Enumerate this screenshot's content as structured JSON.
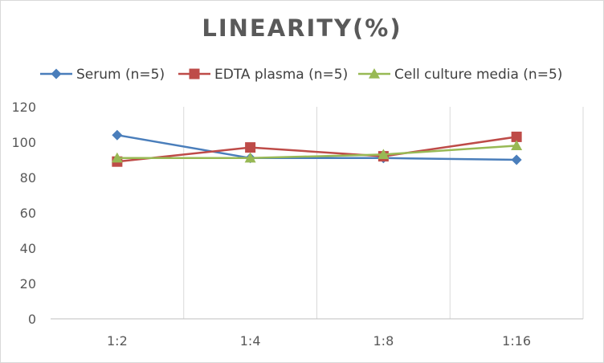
{
  "chart_data": {
    "type": "line",
    "title": "LINEARITY(%)",
    "xlabel": "",
    "ylabel": "",
    "categories": [
      "1:2",
      "1:4",
      "1:8",
      "1:16"
    ],
    "ylim": [
      0,
      120
    ],
    "yticks": [
      0,
      20,
      40,
      60,
      80,
      100,
      120
    ],
    "grid": "vertical",
    "legend_position": "top",
    "series": [
      {
        "name": "Serum (n=5)",
        "values": [
          104,
          91,
          91,
          90
        ],
        "color": "#4a7ebb",
        "marker": "diamond"
      },
      {
        "name": "EDTA plasma (n=5)",
        "values": [
          89,
          97,
          92,
          103
        ],
        "color": "#be4b48",
        "marker": "square"
      },
      {
        "name": "Cell culture media (n=5)",
        "values": [
          91,
          91,
          93,
          98
        ],
        "color": "#98b954",
        "marker": "triangle"
      }
    ]
  }
}
